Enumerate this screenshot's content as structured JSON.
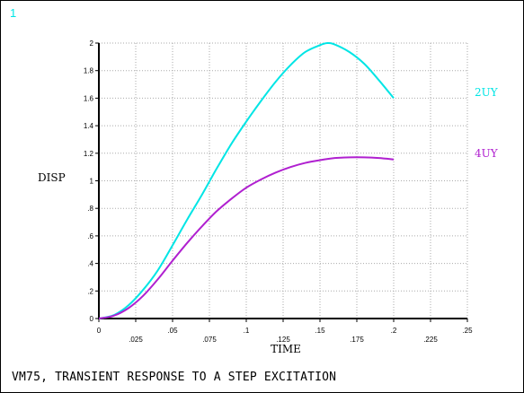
{
  "window_number": "1",
  "caption": "VM75, TRANSIENT RESPONSE TO A STEP EXCITATION",
  "colors": {
    "background": "#ffffff",
    "axis": "#000000",
    "grid": "#aaaaaa",
    "window_number": "#00e5e5"
  },
  "chart_data": {
    "type": "line",
    "title": "",
    "xlabel": "TIME",
    "ylabel": "DISP",
    "xlim": [
      0,
      0.25
    ],
    "ylim": [
      0,
      2
    ],
    "grid": true,
    "x_ticks": [
      {
        "v": 0,
        "label": "0"
      },
      {
        "v": 0.025,
        "label": ".025"
      },
      {
        "v": 0.05,
        "label": ".05"
      },
      {
        "v": 0.075,
        "label": ".075"
      },
      {
        "v": 0.1,
        "label": ".1"
      },
      {
        "v": 0.125,
        "label": ".125"
      },
      {
        "v": 0.15,
        "label": ".15"
      },
      {
        "v": 0.175,
        "label": ".175"
      },
      {
        "v": 0.2,
        "label": ".2"
      },
      {
        "v": 0.225,
        "label": ".225"
      },
      {
        "v": 0.25,
        "label": ".25"
      }
    ],
    "y_ticks": [
      {
        "v": 0,
        "label": "0"
      },
      {
        "v": 0.2,
        "label": ".2"
      },
      {
        "v": 0.4,
        "label": ".4"
      },
      {
        "v": 0.6,
        "label": ".6"
      },
      {
        "v": 0.8,
        "label": ".8"
      },
      {
        "v": 1.0,
        "label": "1"
      },
      {
        "v": 1.2,
        "label": "1.2"
      },
      {
        "v": 1.4,
        "label": "1.4"
      },
      {
        "v": 1.6,
        "label": "1.6"
      },
      {
        "v": 1.8,
        "label": "1.8"
      },
      {
        "v": 2.0,
        "label": "2"
      }
    ],
    "legend": "right",
    "series": [
      {
        "name": "2UY",
        "color": "#00e5e5",
        "x": [
          0,
          0.01,
          0.02,
          0.03,
          0.04,
          0.05,
          0.06,
          0.07,
          0.08,
          0.09,
          0.1,
          0.11,
          0.12,
          0.13,
          0.14,
          0.15,
          0.155,
          0.16,
          0.17,
          0.18,
          0.19,
          0.2
        ],
        "y": [
          0,
          0.024,
          0.095,
          0.208,
          0.35,
          0.532,
          0.72,
          0.9,
          1.09,
          1.27,
          1.43,
          1.58,
          1.72,
          1.84,
          1.935,
          1.985,
          2.0,
          1.99,
          1.935,
          1.85,
          1.73,
          1.6
        ]
      },
      {
        "name": "4UY",
        "color": "#b020d0",
        "x": [
          0,
          0.01,
          0.02,
          0.03,
          0.04,
          0.05,
          0.06,
          0.07,
          0.08,
          0.09,
          0.1,
          0.11,
          0.12,
          0.13,
          0.14,
          0.15,
          0.16,
          0.17,
          0.18,
          0.19,
          0.2
        ],
        "y": [
          0,
          0.02,
          0.075,
          0.165,
          0.285,
          0.42,
          0.55,
          0.67,
          0.78,
          0.87,
          0.95,
          1.01,
          1.06,
          1.1,
          1.13,
          1.15,
          1.165,
          1.17,
          1.17,
          1.165,
          1.155
        ]
      }
    ]
  }
}
